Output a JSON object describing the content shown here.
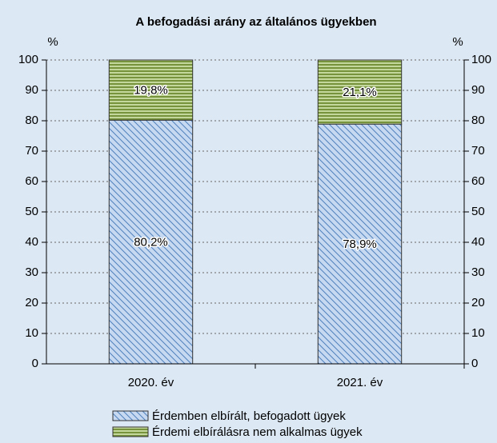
{
  "chart_data": {
    "type": "stacked_bar",
    "title": "A befogadási arány az általános ügyekben",
    "y_label": "%",
    "y2_label": "%",
    "categories": [
      "2020. év",
      "2021. év"
    ],
    "series": [
      {
        "name": "Érdemben elbírált, befogadott ügyek",
        "color": "#4f81bd",
        "values": [
          80.2,
          78.9
        ],
        "value_labels": [
          "80,2%",
          "78,9%"
        ]
      },
      {
        "name": "Érdemi elbírálásra nem alkalmas ügyek",
        "color": "#77933c",
        "values": [
          19.8,
          21.1
        ],
        "value_labels": [
          "19,8%",
          "21,1%"
        ]
      }
    ],
    "ylim": [
      0,
      100
    ],
    "yticks": [
      0,
      10,
      20,
      30,
      40,
      50,
      60,
      70,
      80,
      90,
      100
    ],
    "y2lim": [
      0,
      100
    ],
    "y2ticks": [
      0,
      10,
      20,
      30,
      40,
      50,
      60,
      70,
      80,
      90,
      100
    ],
    "grid": true
  }
}
